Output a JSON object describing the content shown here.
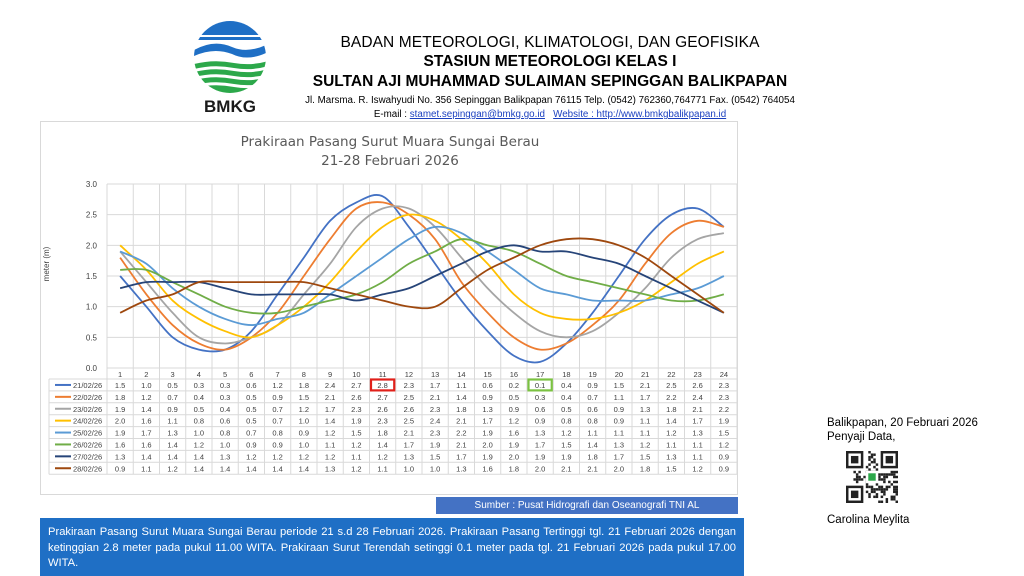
{
  "header": {
    "logo_text": "BMKG",
    "org": "BADAN METEOROLOGI, KLIMATOLOGI, DAN GEOFISIKA",
    "station": "STASIUN METEOROLOGI KELAS I",
    "airport": "SULTAN AJI MUHAMMAD SULAIMAN SEPINGGAN BALIKPAPAN",
    "address": "Jl. Marsma. R. Iswahyudi No. 356 Sepinggan Balikpapan 76115  Telp. (0542) 762360,764771 Fax. (0542) 764054",
    "email_label": "E-mail : ",
    "email": "stamet.sepinggan@bmkg.go.id",
    "website_label": "Website : ",
    "website": "http://www.bmkgbalikpapan.id"
  },
  "chart_data": {
    "type": "line",
    "title": "Prakiraan Pasang Surut Muara Sungai Berau",
    "subtitle": "21-28 Februari 2026",
    "ylabel": "meter (m)",
    "xlabel": "",
    "ylim": [
      0,
      3
    ],
    "yticks": [
      "0.0",
      "0.5",
      "1.0",
      "1.5",
      "2.0",
      "2.5",
      "3.0"
    ],
    "categories": [
      "1",
      "2",
      "3",
      "4",
      "5",
      "6",
      "7",
      "8",
      "9",
      "10",
      "11",
      "12",
      "13",
      "14",
      "15",
      "16",
      "17",
      "18",
      "19",
      "20",
      "21",
      "22",
      "23",
      "24"
    ],
    "grid": true,
    "legend": "data-table",
    "series": [
      {
        "name": "21/02/26",
        "color": "#4472c4",
        "values": [
          1.5,
          1.0,
          0.5,
          0.3,
          0.3,
          0.6,
          1.2,
          1.8,
          2.4,
          2.7,
          2.8,
          2.3,
          1.7,
          1.1,
          0.6,
          0.2,
          0.1,
          0.4,
          0.9,
          1.5,
          2.1,
          2.5,
          2.6,
          2.3
        ]
      },
      {
        "name": "22/02/26",
        "color": "#ed7d31",
        "values": [
          1.8,
          1.2,
          0.7,
          0.4,
          0.3,
          0.5,
          0.9,
          1.5,
          2.1,
          2.6,
          2.7,
          2.5,
          2.1,
          1.4,
          0.9,
          0.5,
          0.3,
          0.4,
          0.7,
          1.1,
          1.7,
          2.2,
          2.4,
          2.3
        ]
      },
      {
        "name": "23/02/26",
        "color": "#a5a5a5",
        "values": [
          1.9,
          1.4,
          0.9,
          0.5,
          0.4,
          0.5,
          0.7,
          1.2,
          1.7,
          2.3,
          2.6,
          2.6,
          2.3,
          1.8,
          1.3,
          0.9,
          0.6,
          0.5,
          0.6,
          0.9,
          1.3,
          1.8,
          2.1,
          2.2
        ]
      },
      {
        "name": "24/02/26",
        "color": "#ffc000",
        "values": [
          2.0,
          1.6,
          1.1,
          0.8,
          0.6,
          0.5,
          0.7,
          1.0,
          1.4,
          1.9,
          2.3,
          2.5,
          2.4,
          2.1,
          1.7,
          1.2,
          0.9,
          0.8,
          0.8,
          0.9,
          1.1,
          1.4,
          1.7,
          1.9
        ]
      },
      {
        "name": "25/02/26",
        "color": "#5b9bd5",
        "values": [
          1.9,
          1.7,
          1.3,
          1.0,
          0.8,
          0.7,
          0.8,
          0.9,
          1.2,
          1.5,
          1.8,
          2.1,
          2.3,
          2.2,
          1.9,
          1.6,
          1.3,
          1.2,
          1.1,
          1.1,
          1.1,
          1.2,
          1.3,
          1.5
        ]
      },
      {
        "name": "26/02/26",
        "color": "#70ad47",
        "values": [
          1.6,
          1.6,
          1.4,
          1.2,
          1.0,
          0.9,
          0.9,
          1.0,
          1.1,
          1.2,
          1.4,
          1.7,
          1.9,
          2.1,
          2.0,
          1.9,
          1.7,
          1.5,
          1.4,
          1.3,
          1.2,
          1.1,
          1.1,
          1.2
        ]
      },
      {
        "name": "27/02/26",
        "color": "#264478",
        "values": [
          1.3,
          1.4,
          1.4,
          1.4,
          1.3,
          1.2,
          1.2,
          1.2,
          1.2,
          1.1,
          1.2,
          1.3,
          1.5,
          1.7,
          1.9,
          2.0,
          1.9,
          1.9,
          1.8,
          1.7,
          1.5,
          1.3,
          1.1,
          0.9
        ]
      },
      {
        "name": "28/02/26",
        "color": "#9e480e",
        "values": [
          0.9,
          1.1,
          1.2,
          1.4,
          1.4,
          1.4,
          1.4,
          1.4,
          1.3,
          1.2,
          1.1,
          1.0,
          1.0,
          1.3,
          1.6,
          1.8,
          2.0,
          2.1,
          2.1,
          2.0,
          1.8,
          1.5,
          1.2,
          0.9
        ]
      }
    ],
    "highlights": [
      {
        "series": 0,
        "index": 10,
        "color": "#e0201a"
      },
      {
        "series": 0,
        "index": 16,
        "color": "#7bc242"
      }
    ]
  },
  "source": "Sumber : Pusat Hidrografi dan Oseanografi TNI AL",
  "summary": "Prakiraan Pasang Surut Muara Sungai Berau periode 21 s.d 28 Februari 2026. Prakiraan Pasang Tertinggi tgl. 21 Februari 2026 dengan ketinggian 2.8 meter pada pukul 11.00 WITA. Prakiraan Surut Terendah setinggi 0.1 meter pada tgl. 21 Februari 2026 pada pukul 17.00 WITA.",
  "signature": {
    "place_date": "Balikpapan, 20 Februari 2026",
    "role": "Penyaji Data,",
    "name": "Carolina Meylita"
  }
}
